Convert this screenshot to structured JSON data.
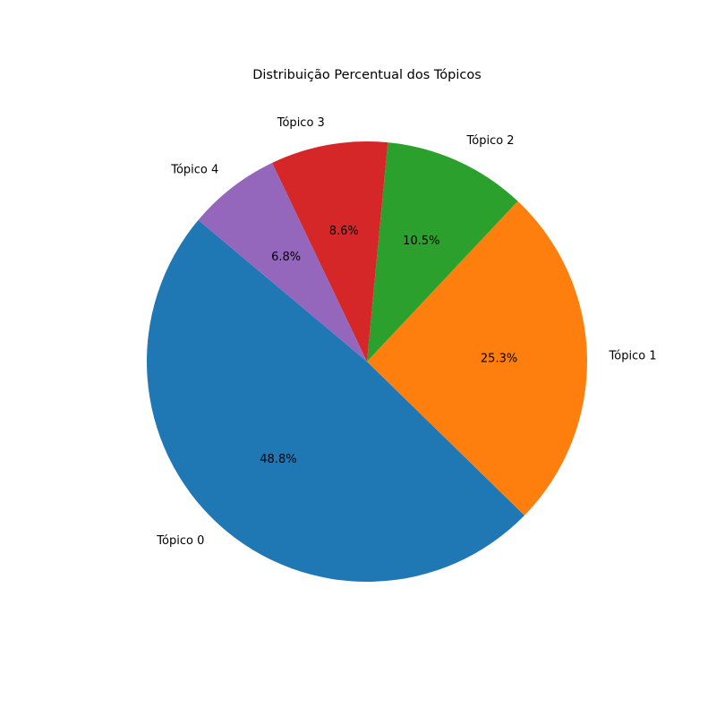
{
  "chart_data": {
    "type": "pie",
    "title": "Distribuição Percentual dos Tópicos",
    "categories": [
      "Tópico 0",
      "Tópico 1",
      "Tópico 2",
      "Tópico 3",
      "Tópico 4"
    ],
    "values": [
      48.8,
      25.3,
      10.5,
      8.6,
      6.8
    ],
    "value_labels": [
      "48.8%",
      "25.3%",
      "10.5%",
      "8.6%",
      "6.8%"
    ],
    "colors": [
      "#1f77b4",
      "#ff7f0e",
      "#2ca02c",
      "#d62728",
      "#9467bd"
    ],
    "start_angle_deg": 140,
    "direction": "counterclockwise"
  }
}
